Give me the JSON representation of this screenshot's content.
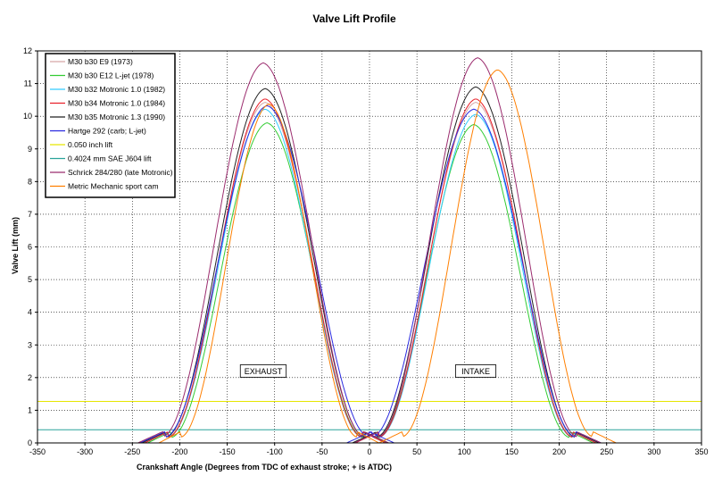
{
  "chart_data": {
    "type": "line",
    "title": "Valve Lift Profile",
    "xlabel": "Crankshaft Angle (Degrees from TDC of exhaust stroke; + is ATDC)",
    "ylabel": "Valve Lift (mm)",
    "xlim": [
      -350,
      350
    ],
    "ylim": [
      0,
      12
    ],
    "xticks": [
      -350,
      -300,
      -250,
      -200,
      -150,
      -100,
      -50,
      0,
      50,
      100,
      150,
      200,
      250,
      300,
      350
    ],
    "yticks": [
      0,
      1,
      2,
      3,
      4,
      5,
      6,
      7,
      8,
      9,
      10,
      11,
      12
    ],
    "grid": true,
    "legend_position": "top-left",
    "annotations": [
      {
        "text": "EXHAUST",
        "x": -112,
        "y": 2.2
      },
      {
        "text": "INTAKE",
        "x": 112,
        "y": 2.2
      }
    ],
    "series": [
      {
        "name": "M30 b30 E9 (1973)",
        "color": "#d8a8a8",
        "kind": "cam",
        "exhaust": {
          "peak": 9.95,
          "center": -110,
          "half": 128
        },
        "intake": {
          "peak": 9.95,
          "center": 112,
          "half": 128
        }
      },
      {
        "name": "M30 b30 E12 L-jet (1978)",
        "color": "#33cc33",
        "kind": "cam",
        "exhaust": {
          "peak": 9.35,
          "center": -108,
          "half": 126
        },
        "intake": {
          "peak": 9.3,
          "center": 110,
          "half": 126
        }
      },
      {
        "name": "M30 b32 Motronic 1.0 (1982)",
        "color": "#33ccff",
        "kind": "cam",
        "exhaust": {
          "peak": 9.75,
          "center": -110,
          "half": 127
        },
        "intake": {
          "peak": 9.6,
          "center": 112,
          "half": 127
        }
      },
      {
        "name": "M30 b34 Motronic 1.0 (1984)",
        "color": "#e8202a",
        "kind": "cam",
        "exhaust": {
          "peak": 10.05,
          "center": -110,
          "half": 127
        },
        "intake": {
          "peak": 10.05,
          "center": 112,
          "half": 127
        }
      },
      {
        "name": "M30 b35 Motronic 1.3 (1990)",
        "color": "#222222",
        "kind": "cam",
        "exhaust": {
          "peak": 10.35,
          "center": -110,
          "half": 130
        },
        "intake": {
          "peak": 10.4,
          "center": 112,
          "half": 130
        }
      },
      {
        "name": "Hartge 292 (carb; L-jet)",
        "color": "#2a2ae0",
        "kind": "cam",
        "exhaust": {
          "peak": 9.85,
          "center": -108,
          "half": 134
        },
        "intake": {
          "peak": 9.75,
          "center": 110,
          "half": 134
        }
      },
      {
        "name": "0.050 inch lift",
        "color": "#e6e600",
        "kind": "hline",
        "y": 1.27
      },
      {
        "name": "0.4024 mm SAE J604 lift",
        "color": "#2aa39a",
        "kind": "hline",
        "y": 0.4024
      },
      {
        "name": "Schrick 284/280 (late Motronic)",
        "color": "#9b2c6e",
        "kind": "cam",
        "exhaust": {
          "peak": 11.1,
          "center": -112,
          "half": 132
        },
        "intake": {
          "peak": 11.25,
          "center": 114,
          "half": 130
        }
      },
      {
        "name": "Metric Mechanic sport cam",
        "color": "#ff7f00",
        "kind": "cam",
        "exhaust": {
          "peak": 9.9,
          "center": -106,
          "half": 116
        },
        "intake": {
          "peak": 10.9,
          "center": 135,
          "half": 125
        }
      }
    ]
  }
}
